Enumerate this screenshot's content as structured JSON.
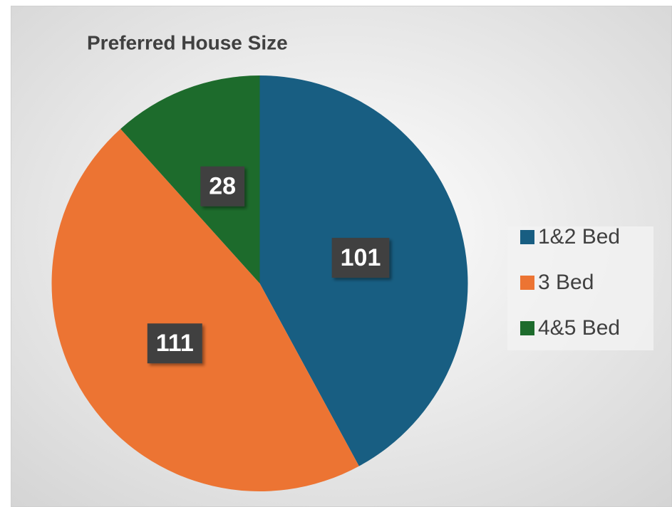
{
  "chart_data": {
    "type": "pie",
    "title": "Preferred House Size",
    "categories": [
      "1&2 Bed",
      "3 Bed",
      "4&5 Bed"
    ],
    "values": [
      101,
      111,
      28
    ],
    "colors": [
      "#185e82",
      "#ec7433",
      "#1d6b2c"
    ],
    "legend": "right"
  }
}
